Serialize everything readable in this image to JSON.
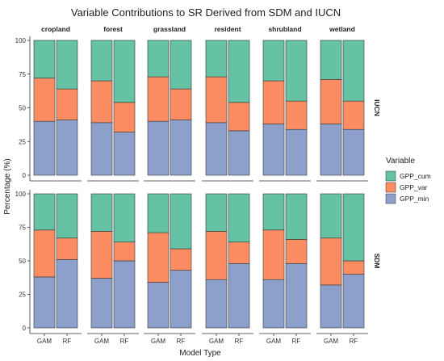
{
  "chart_data": {
    "type": "bar",
    "title": "Variable Contributions to SR Derived from SDM and IUCN",
    "xlabel": "Model Type",
    "ylabel": "Percentage (%)",
    "ylim": [
      0,
      100
    ],
    "yticks": [
      "0",
      "25",
      "50",
      "75",
      "100"
    ],
    "categories": [
      "GAM",
      "RF"
    ],
    "columns": [
      "cropland",
      "forest",
      "grassland",
      "resident",
      "shrubland",
      "wetland"
    ],
    "rows": [
      "IUCN",
      "SDM"
    ],
    "stack_order": [
      "GPP_min",
      "GPP_var",
      "GPP_cum"
    ],
    "legend": {
      "title": "Variable",
      "position": "right",
      "entries": [
        {
          "name": "GPP_cum",
          "color": "#66c2a5"
        },
        {
          "name": "GPP_var",
          "color": "#fc8d62"
        },
        {
          "name": "GPP_min",
          "color": "#8da0cb"
        }
      ]
    },
    "panels": [
      {
        "row": "IUCN",
        "column": "cropland",
        "GAM": {
          "GPP_min": 40,
          "GPP_var": 32,
          "GPP_cum": 28
        },
        "RF": {
          "GPP_min": 41,
          "GPP_var": 23,
          "GPP_cum": 36
        }
      },
      {
        "row": "IUCN",
        "column": "forest",
        "GAM": {
          "GPP_min": 39,
          "GPP_var": 31,
          "GPP_cum": 30
        },
        "RF": {
          "GPP_min": 32,
          "GPP_var": 22,
          "GPP_cum": 46
        }
      },
      {
        "row": "IUCN",
        "column": "grassland",
        "GAM": {
          "GPP_min": 40,
          "GPP_var": 33,
          "GPP_cum": 27
        },
        "RF": {
          "GPP_min": 41,
          "GPP_var": 23,
          "GPP_cum": 36
        }
      },
      {
        "row": "IUCN",
        "column": "resident",
        "GAM": {
          "GPP_min": 39,
          "GPP_var": 34,
          "GPP_cum": 27
        },
        "RF": {
          "GPP_min": 33,
          "GPP_var": 21,
          "GPP_cum": 46
        }
      },
      {
        "row": "IUCN",
        "column": "shrubland",
        "GAM": {
          "GPP_min": 38,
          "GPP_var": 32,
          "GPP_cum": 30
        },
        "RF": {
          "GPP_min": 34,
          "GPP_var": 21,
          "GPP_cum": 45
        }
      },
      {
        "row": "IUCN",
        "column": "wetland",
        "GAM": {
          "GPP_min": 38,
          "GPP_var": 33,
          "GPP_cum": 29
        },
        "RF": {
          "GPP_min": 34,
          "GPP_var": 21,
          "GPP_cum": 45
        }
      },
      {
        "row": "SDM",
        "column": "cropland",
        "GAM": {
          "GPP_min": 38,
          "GPP_var": 35,
          "GPP_cum": 27
        },
        "RF": {
          "GPP_min": 51,
          "GPP_var": 16,
          "GPP_cum": 33
        }
      },
      {
        "row": "SDM",
        "column": "forest",
        "GAM": {
          "GPP_min": 37,
          "GPP_var": 35,
          "GPP_cum": 28
        },
        "RF": {
          "GPP_min": 50,
          "GPP_var": 14,
          "GPP_cum": 36
        }
      },
      {
        "row": "SDM",
        "column": "grassland",
        "GAM": {
          "GPP_min": 34,
          "GPP_var": 37,
          "GPP_cum": 29
        },
        "RF": {
          "GPP_min": 43,
          "GPP_var": 16,
          "GPP_cum": 41
        }
      },
      {
        "row": "SDM",
        "column": "resident",
        "GAM": {
          "GPP_min": 36,
          "GPP_var": 36,
          "GPP_cum": 28
        },
        "RF": {
          "GPP_min": 48,
          "GPP_var": 16,
          "GPP_cum": 36
        }
      },
      {
        "row": "SDM",
        "column": "shrubland",
        "GAM": {
          "GPP_min": 36,
          "GPP_var": 37,
          "GPP_cum": 27
        },
        "RF": {
          "GPP_min": 48,
          "GPP_var": 18,
          "GPP_cum": 34
        }
      },
      {
        "row": "SDM",
        "column": "wetland",
        "GAM": {
          "GPP_min": 32,
          "GPP_var": 35,
          "GPP_cum": 33
        },
        "RF": {
          "GPP_min": 40,
          "GPP_var": 10,
          "GPP_cum": 50
        }
      }
    ]
  }
}
